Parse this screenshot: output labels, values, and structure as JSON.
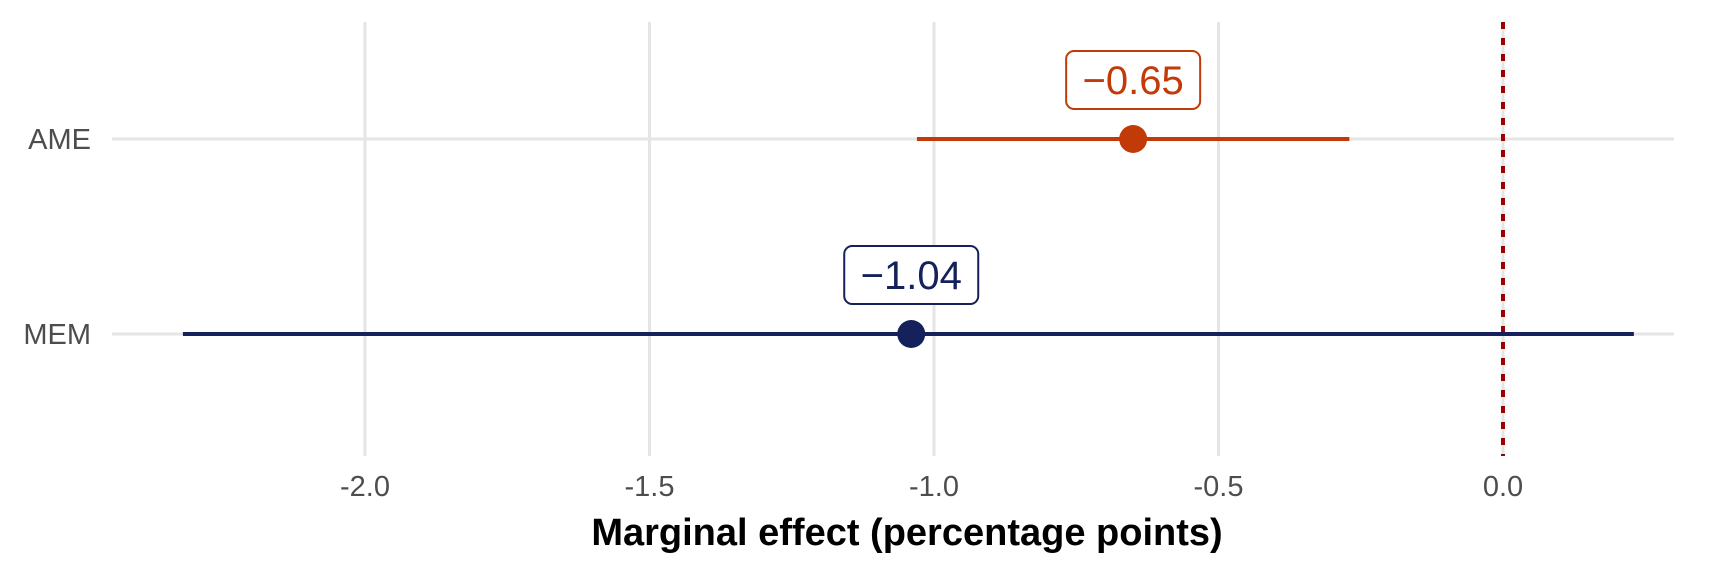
{
  "chart_data": {
    "type": "dot-whisker",
    "title": "",
    "xlabel": "Marginal effect (percentage points)",
    "ylabel": "",
    "xlim": [
      -2.45,
      0.38
    ],
    "x_ticks": [
      -2.0,
      -1.5,
      -1.0,
      -0.5,
      0.0
    ],
    "x_tick_labels": [
      "-2.0",
      "-1.5",
      "-1.0",
      "-0.5",
      "0.0"
    ],
    "categories": [
      "AME",
      "MEM"
    ],
    "series": [
      {
        "category": "AME",
        "estimate": -0.65,
        "ci_low": -1.03,
        "ci_high": -0.27,
        "label": "−0.65",
        "color": "#c23a08"
      },
      {
        "category": "MEM",
        "estimate": -1.04,
        "ci_low": -2.32,
        "ci_high": 0.23,
        "label": "−1.04",
        "color": "#14215a"
      }
    ],
    "reference_line": {
      "x": 0.0,
      "style": "dotted",
      "color": "#9b0000"
    },
    "grid": true,
    "legend": "none"
  }
}
